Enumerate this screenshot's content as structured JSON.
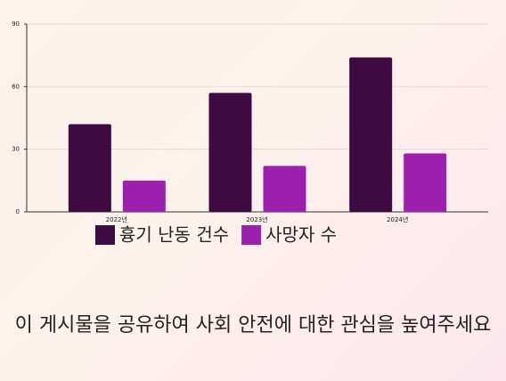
{
  "chart_data": {
    "type": "bar",
    "categories": [
      "2022년",
      "2023년",
      "2024년"
    ],
    "series": [
      {
        "name": "흉기 난동 건수",
        "color": "#3d0b3f",
        "values": [
          42,
          57,
          74
        ]
      },
      {
        "name": "사망자 수",
        "color": "#9c20ad",
        "values": [
          15,
          22,
          28
        ]
      }
    ],
    "ylim": [
      0,
      90
    ],
    "yticks": [
      0,
      30,
      60,
      90
    ],
    "grid": true
  },
  "footer_text": "이 게시물을 공유하여 사회 안전에 대한 관심을 높여주세요"
}
